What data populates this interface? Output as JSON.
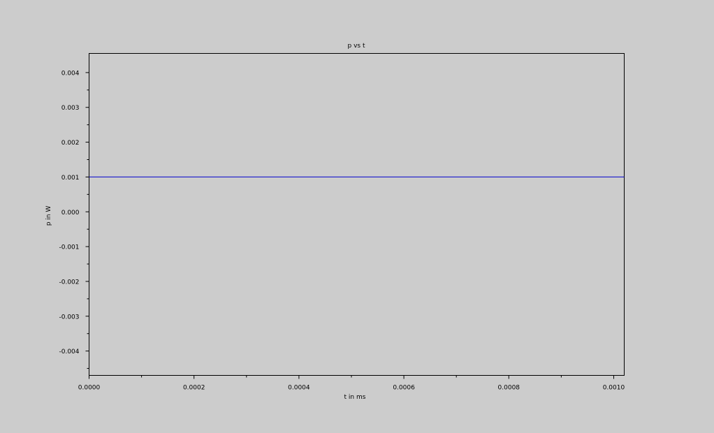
{
  "chart_data": {
    "type": "line",
    "title": "p vs t",
    "xlabel": "t in ms",
    "ylabel": "p in W",
    "xlim": [
      0,
      0.00102
    ],
    "ylim": [
      -0.0047,
      0.00455
    ],
    "x_ticks": [
      0,
      0.0002,
      0.0004,
      0.0006,
      0.0008,
      0.001
    ],
    "x_tick_labels": [
      "0.0000",
      "0.0002",
      "0.0004",
      "0.0006",
      "0.0008",
      "0.0010"
    ],
    "x_minor_ticks": [
      0.0001,
      0.0003,
      0.0005,
      0.0007,
      0.0009
    ],
    "y_ticks": [
      0.004,
      0.003,
      0.002,
      0.001,
      0.0,
      -0.001,
      -0.002,
      -0.003,
      -0.004
    ],
    "y_tick_labels": [
      "0.004",
      "0.003",
      "0.002",
      "0.001",
      "0.000",
      "-0.001",
      "-0.002",
      "-0.003",
      "-0.004"
    ],
    "y_minor_ticks": [
      0.0035,
      0.0025,
      0.0015,
      0.0005,
      -0.0005,
      -0.0015,
      -0.0025,
      -0.0035,
      -0.0045
    ],
    "grid": false,
    "series": [
      {
        "color": "#0000cc",
        "x": [
          0,
          0.00102
        ],
        "y": [
          0.001,
          0.001
        ]
      }
    ]
  }
}
